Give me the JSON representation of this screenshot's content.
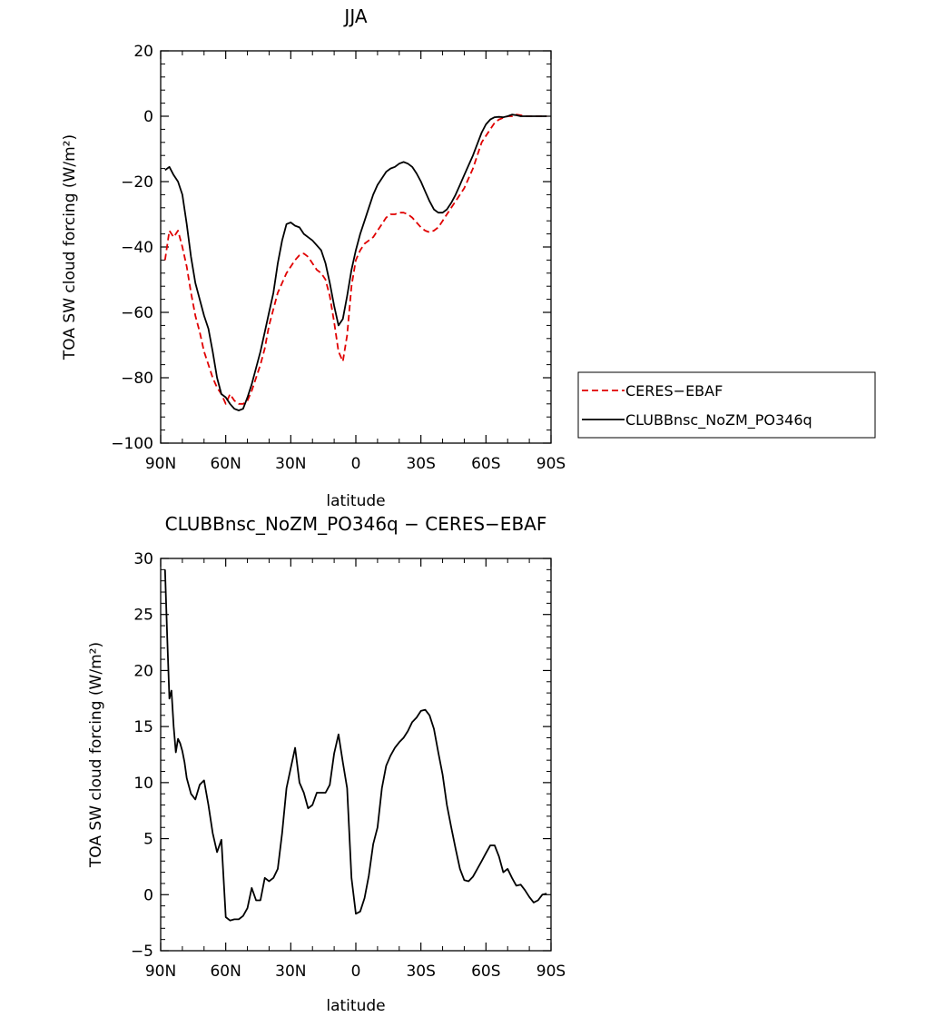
{
  "chart_data": [
    {
      "type": "line",
      "title": "JJA",
      "xlabel": "latitude",
      "ylabel": "TOA SW cloud forcing (W/m²)",
      "xlim": [
        90,
        -90
      ],
      "ylim": [
        -100,
        20
      ],
      "x_ticks": [
        90,
        60,
        30,
        0,
        -30,
        -60,
        -90
      ],
      "x_tick_labels": [
        "90N",
        "60N",
        "30N",
        "0",
        "30S",
        "60S",
        "90S"
      ],
      "y_ticks": [
        20,
        0,
        -20,
        -40,
        -60,
        -80,
        -100
      ],
      "y_tick_labels": [
        "20",
        "0",
        "−20",
        "−40",
        "−60",
        "−80",
        "−100"
      ],
      "grid": false,
      "legend_position": "right",
      "series": [
        {
          "name": "CERES−EBAF",
          "color": "#e00000",
          "dash": "dashed",
          "x": [
            88,
            86,
            84,
            82,
            80,
            78,
            76,
            74,
            72,
            70,
            68,
            66,
            64,
            62,
            60,
            58,
            56,
            54,
            52,
            50,
            48,
            46,
            44,
            42,
            40,
            38,
            36,
            34,
            32,
            30,
            28,
            26,
            24,
            22,
            20,
            18,
            16,
            14,
            12,
            10,
            8,
            6,
            4,
            2,
            0,
            -2,
            -4,
            -6,
            -8,
            -10,
            -12,
            -14,
            -16,
            -18,
            -20,
            -22,
            -24,
            -26,
            -28,
            -30,
            -32,
            -34,
            -36,
            -38,
            -40,
            -42,
            -44,
            -46,
            -48,
            -50,
            -52,
            -54,
            -56,
            -58,
            -60,
            -62,
            -64,
            -66,
            -68,
            -70,
            -72,
            -74,
            -76,
            -78,
            -80,
            -82,
            -84,
            -86,
            -88
          ],
          "y": [
            -44,
            -35,
            -37,
            -35,
            -40,
            -46,
            -54,
            -61,
            -66,
            -72,
            -76,
            -80,
            -83,
            -85,
            -88,
            -85,
            -87,
            -88,
            -88,
            -87,
            -84,
            -80,
            -76,
            -71,
            -64,
            -59,
            -54,
            -51,
            -48,
            -46,
            -44,
            -42.5,
            -42,
            -43,
            -45,
            -47,
            -48,
            -50,
            -55,
            -63,
            -72,
            -75,
            -67,
            -52,
            -44,
            -41,
            -39,
            -38,
            -37,
            -35,
            -33,
            -31,
            -30,
            -30,
            -29.5,
            -29.5,
            -30,
            -31,
            -32.5,
            -34,
            -35,
            -35.5,
            -35,
            -34,
            -32,
            -30,
            -28,
            -26,
            -24,
            -22,
            -19,
            -16,
            -12,
            -8,
            -6,
            -4,
            -2,
            -1,
            -0.5,
            0,
            0,
            0.5,
            0.3,
            0,
            0,
            0,
            0,
            0,
            0
          ]
        },
        {
          "name": "CLUBBnsc_NoZM_PO346q",
          "color": "#000000",
          "dash": "solid",
          "x": [
            88,
            86,
            84,
            82,
            80,
            78,
            76,
            74,
            72,
            70,
            68,
            66,
            64,
            62,
            60,
            58,
            56,
            54,
            52,
            50,
            48,
            46,
            44,
            42,
            40,
            38,
            36,
            34,
            32,
            30,
            28,
            26,
            24,
            22,
            20,
            18,
            16,
            14,
            12,
            10,
            8,
            6,
            4,
            2,
            0,
            -2,
            -4,
            -6,
            -8,
            -10,
            -12,
            -14,
            -16,
            -18,
            -20,
            -22,
            -24,
            -26,
            -28,
            -30,
            -32,
            -34,
            -36,
            -38,
            -40,
            -42,
            -44,
            -46,
            -48,
            -50,
            -52,
            -54,
            -56,
            -58,
            -60,
            -62,
            -64,
            -66,
            -68,
            -70,
            -72,
            -74,
            -76,
            -78,
            -80,
            -82,
            -84,
            -86,
            -88
          ],
          "y": [
            -16.5,
            -15.5,
            -18,
            -20,
            -24,
            -33,
            -43,
            -51,
            -56,
            -61,
            -65,
            -72,
            -80,
            -85,
            -86,
            -88,
            -89.5,
            -90,
            -89.5,
            -86,
            -82,
            -77,
            -72,
            -66,
            -60,
            -54,
            -45,
            -38,
            -33,
            -32.5,
            -33.5,
            -34,
            -36,
            -37,
            -38,
            -39.5,
            -41,
            -45,
            -51,
            -58,
            -64,
            -62,
            -55,
            -47,
            -41,
            -36,
            -32,
            -28,
            -24,
            -21,
            -19,
            -17,
            -16,
            -15.5,
            -14.5,
            -14,
            -14.5,
            -15.5,
            -17.5,
            -20,
            -23,
            -26,
            -28.5,
            -29.5,
            -29.5,
            -28.5,
            -26.5,
            -24,
            -21,
            -18,
            -15,
            -12,
            -8.5,
            -5,
            -2.5,
            -1,
            -0.3,
            -0.2,
            -0.3,
            0,
            0.5,
            0.3,
            0,
            0,
            0,
            0,
            0,
            0,
            0
          ]
        }
      ]
    },
    {
      "type": "line",
      "title": "CLUBBnsc_NoZM_PO346q − CERES−EBAF",
      "xlabel": "latitude",
      "ylabel": "TOA SW cloud forcing (W/m²)",
      "xlim": [
        90,
        -90
      ],
      "ylim": [
        -5,
        30
      ],
      "x_ticks": [
        90,
        60,
        30,
        0,
        -30,
        -60,
        -90
      ],
      "x_tick_labels": [
        "90N",
        "60N",
        "30N",
        "0",
        "30S",
        "60S",
        "90S"
      ],
      "y_ticks": [
        30,
        25,
        20,
        15,
        10,
        5,
        0,
        -5
      ],
      "y_tick_labels": [
        "30",
        "25",
        "20",
        "15",
        "10",
        "5",
        "0",
        "−5"
      ],
      "grid": false,
      "series": [
        {
          "color": "#000000",
          "dash": "solid",
          "x": [
            88,
            87,
            86,
            85,
            84,
            83,
            82,
            81,
            80,
            79,
            78,
            76,
            74,
            72,
            70,
            68,
            66,
            64,
            62,
            60,
            58,
            56,
            54,
            52,
            50,
            48,
            46,
            44,
            42,
            40,
            38,
            36,
            34,
            32,
            30,
            28,
            26,
            24,
            22,
            20,
            18,
            16,
            14,
            12,
            10,
            8,
            6,
            4,
            2,
            0,
            -2,
            -4,
            -6,
            -8,
            -10,
            -12,
            -14,
            -16,
            -18,
            -20,
            -22,
            -24,
            -26,
            -28,
            -30,
            -32,
            -34,
            -36,
            -38,
            -40,
            -42,
            -44,
            -46,
            -48,
            -50,
            -52,
            -54,
            -56,
            -58,
            -60,
            -62,
            -64,
            -66,
            -68,
            -70,
            -72,
            -74,
            -76,
            -78,
            -80,
            -82,
            -84,
            -86,
            -88
          ],
          "y": [
            29,
            23,
            17.5,
            18.2,
            15,
            12.7,
            13.9,
            13.5,
            12.8,
            11.8,
            10.4,
            9,
            8.5,
            9.8,
            10.2,
            8,
            5.5,
            3.8,
            4.9,
            -2,
            -2.3,
            -2.2,
            -2.2,
            -1.9,
            -1.2,
            0.6,
            -0.5,
            -0.5,
            1.5,
            1.2,
            1.5,
            2.3,
            5.5,
            9.5,
            11.3,
            13.1,
            10,
            9.1,
            7.7,
            8,
            9.1,
            9.1,
            9.1,
            9.8,
            12.6,
            14.3,
            11.8,
            9.5,
            1.5,
            -1.7,
            -1.5,
            -0.3,
            1.7,
            4.5,
            6,
            9.5,
            11.5,
            12.4,
            13.1,
            13.6,
            14,
            14.6,
            15.4,
            15.8,
            16.4,
            16.5,
            16,
            14.8,
            12.7,
            10.7,
            8,
            6,
            4.1,
            2.3,
            1.3,
            1.2,
            1.6,
            2.3,
            3,
            3.7,
            4.4,
            4.4,
            3.4,
            2,
            2.3,
            1.5,
            0.8,
            0.9,
            0.4,
            -0.2,
            -0.7,
            -0.5,
            0,
            0.1
          ]
        }
      ]
    }
  ]
}
